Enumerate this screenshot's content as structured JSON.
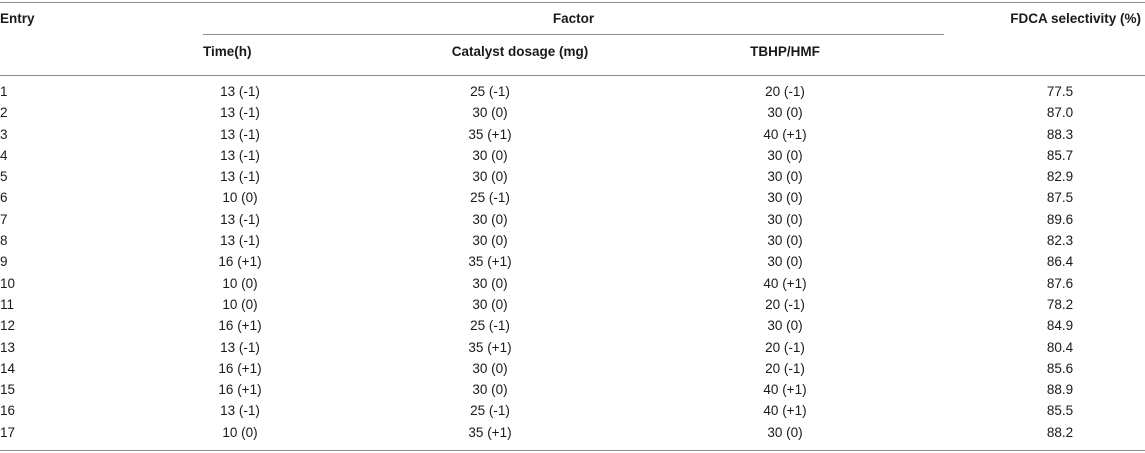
{
  "headers": {
    "entry": "Entry",
    "factor": "Factor",
    "fdca": "FDCA selectivity (%)",
    "time": "Time(h)",
    "catalyst": "Catalyst dosage (mg)",
    "tbhp": "TBHP/HMF"
  },
  "rows": [
    {
      "entry": "1",
      "time": "13 (-1)",
      "catalyst": "25 (-1)",
      "tbhp": "20 (-1)",
      "fdca": "77.5"
    },
    {
      "entry": "2",
      "time": "13 (-1)",
      "catalyst": "30 (0)",
      "tbhp": "30 (0)",
      "fdca": "87.0"
    },
    {
      "entry": "3",
      "time": "13 (-1)",
      "catalyst": "35 (+1)",
      "tbhp": "40 (+1)",
      "fdca": "88.3"
    },
    {
      "entry": "4",
      "time": "13 (-1)",
      "catalyst": "30 (0)",
      "tbhp": "30 (0)",
      "fdca": "85.7"
    },
    {
      "entry": "5",
      "time": "13 (-1)",
      "catalyst": "30 (0)",
      "tbhp": "30 (0)",
      "fdca": "82.9"
    },
    {
      "entry": "6",
      "time": "10 (0)",
      "catalyst": "25 (-1)",
      "tbhp": "30 (0)",
      "fdca": "87.5"
    },
    {
      "entry": "7",
      "time": "13 (-1)",
      "catalyst": "30 (0)",
      "tbhp": "30 (0)",
      "fdca": "89.6"
    },
    {
      "entry": "8",
      "time": "13 (-1)",
      "catalyst": "30 (0)",
      "tbhp": "30 (0)",
      "fdca": "82.3"
    },
    {
      "entry": "9",
      "time": "16 (+1)",
      "catalyst": "35 (+1)",
      "tbhp": "30 (0)",
      "fdca": "86.4"
    },
    {
      "entry": "10",
      "time": "10 (0)",
      "catalyst": "30 (0)",
      "tbhp": "40 (+1)",
      "fdca": "87.6"
    },
    {
      "entry": "11",
      "time": "10 (0)",
      "catalyst": "30 (0)",
      "tbhp": "20 (-1)",
      "fdca": "78.2"
    },
    {
      "entry": "12",
      "time": "16 (+1)",
      "catalyst": "25 (-1)",
      "tbhp": "30 (0)",
      "fdca": "84.9"
    },
    {
      "entry": "13",
      "time": "13 (-1)",
      "catalyst": "35 (+1)",
      "tbhp": "20 (-1)",
      "fdca": "80.4"
    },
    {
      "entry": "14",
      "time": "16 (+1)",
      "catalyst": "30 (0)",
      "tbhp": "20 (-1)",
      "fdca": "85.6"
    },
    {
      "entry": "15",
      "time": "16 (+1)",
      "catalyst": "30 (0)",
      "tbhp": "40 (+1)",
      "fdca": "88.9"
    },
    {
      "entry": "16",
      "time": "13 (-1)",
      "catalyst": "25 (-1)",
      "tbhp": "40 (+1)",
      "fdca": "85.5"
    },
    {
      "entry": "17",
      "time": "10 (0)",
      "catalyst": "35 (+1)",
      "tbhp": "30 (0)",
      "fdca": "88.2"
    }
  ]
}
